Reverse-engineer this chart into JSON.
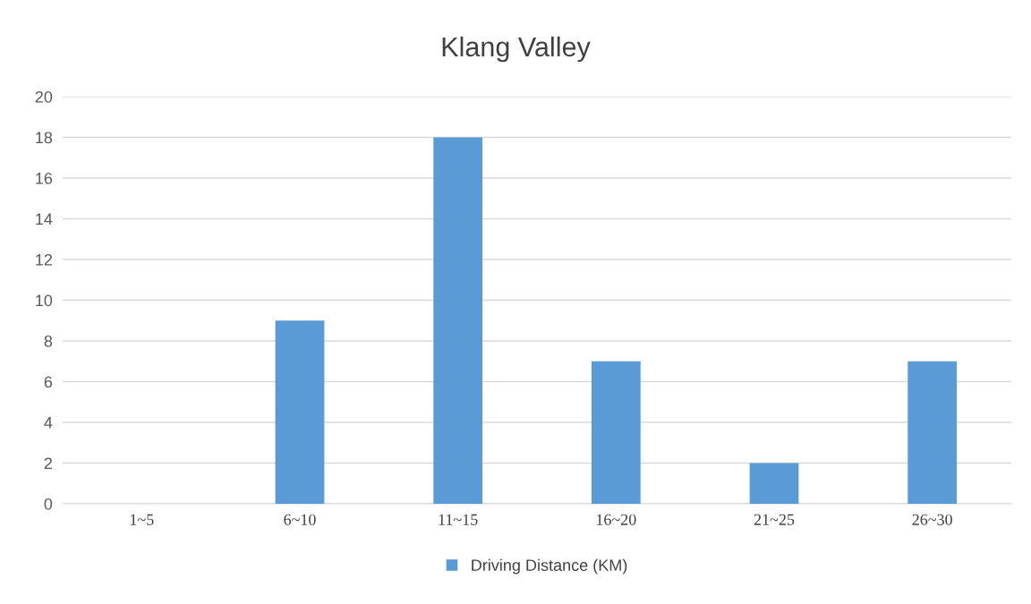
{
  "chart_data": {
    "type": "bar",
    "title": "Klang Valley",
    "categories": [
      "1~5",
      "6~10",
      "11~15",
      "16~20",
      "21~25",
      "26~30"
    ],
    "series": [
      {
        "name": "Driving Distance (KM)",
        "color": "#5b9bd5",
        "values": [
          0,
          9,
          18,
          7,
          2,
          7
        ]
      }
    ],
    "ylim": [
      0,
      20
    ],
    "yticks": [
      0,
      2,
      4,
      6,
      8,
      10,
      12,
      14,
      16,
      18,
      20
    ],
    "grid": "y",
    "legend": "bottom"
  }
}
